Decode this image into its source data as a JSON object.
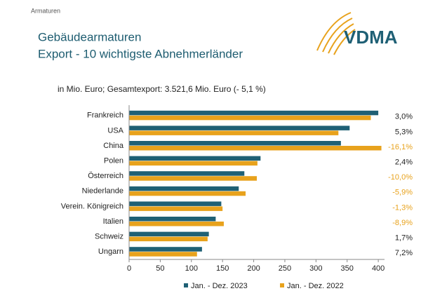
{
  "chart_data": {
    "type": "hbar",
    "header": "Armaturen",
    "title_lines": [
      "Gebäudearmaturen",
      "Export - 10 wichtigste Abnehmerländer"
    ],
    "subtitle": "in Mio. Euro; Gesamtexport: 3.521,6 Mio. Euro (- 5,1 %)",
    "logo": "VDMA",
    "categories": [
      "Frankreich",
      "USA",
      "China",
      "Polen",
      "Österreich",
      "Niederlande",
      "Verein. Königreich",
      "Italien",
      "Schweiz",
      "Ungarn"
    ],
    "series": [
      {
        "name": "Jan. - Dez. 2023",
        "color": "#1f6075",
        "values": [
          400,
          354,
          340,
          211,
          185,
          176,
          148,
          139,
          128,
          117
        ]
      },
      {
        "name": "Jan. - Dez. 2022",
        "color": "#e8a21c",
        "values": [
          388,
          336,
          405,
          206,
          205,
          187,
          150,
          152,
          126,
          109
        ]
      }
    ],
    "change_labels": [
      "3,0%",
      "5,3%",
      "-16,1%",
      "2,4%",
      "-10,0%",
      "-5,9%",
      "-1,3%",
      "-8,9%",
      "1,7%",
      "7,2%"
    ],
    "xlim": [
      0,
      410
    ],
    "xticks": [
      0,
      50,
      100,
      150,
      200,
      250,
      300,
      350,
      400
    ],
    "legend": "bottom"
  }
}
